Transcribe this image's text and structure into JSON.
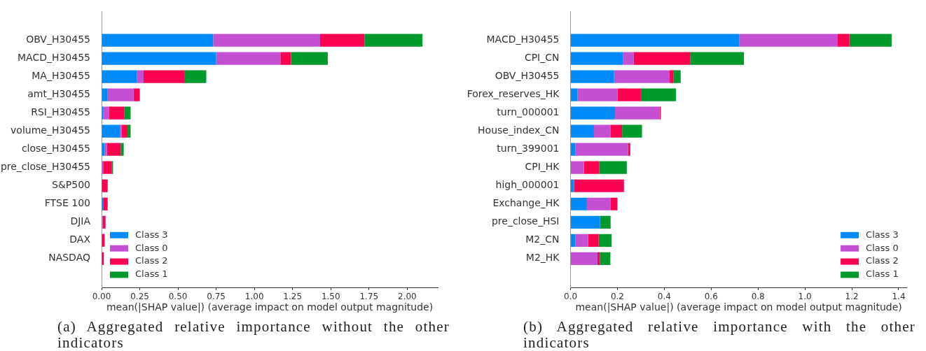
{
  "chart_data": [
    {
      "type": "bar",
      "orientation": "horizontal",
      "stacked": true,
      "grid": false,
      "legend": "bottom left",
      "categories": [
        "OBV_H30455",
        "MACD_H30455",
        "MA_H30455",
        "amt_H30455",
        "RSI_H30455",
        "volume_H30455",
        "close_H30455",
        "pre_close_H30455",
        "S&P500",
        "FTSE 100",
        "DJIA",
        "DAX",
        "NASDAQ"
      ],
      "series": [
        {
          "name": "Class 3",
          "color": "#008bfb",
          "values": [
            0.73,
            0.75,
            0.23,
            0.04,
            0.01,
            0.12,
            0.02,
            null,
            null,
            0.01,
            null,
            null,
            null
          ]
        },
        {
          "name": "Class 0",
          "color": "#c54fd3",
          "values": [
            0.7,
            0.42,
            0.045,
            0.17,
            0.04,
            0.01,
            0.015,
            0.01,
            null,
            null,
            0.008,
            null,
            null
          ]
        },
        {
          "name": "Class 2",
          "color": "#ff0051",
          "values": [
            0.29,
            0.07,
            0.27,
            0.04,
            0.1,
            0.04,
            0.09,
            0.055,
            0.04,
            0.03,
            0.018,
            0.02,
            0.015
          ]
        },
        {
          "name": "Class 1",
          "color": "#00992b",
          "values": [
            0.38,
            0.24,
            0.14,
            null,
            0.04,
            0.02,
            0.02,
            0.01,
            null,
            null,
            null,
            null,
            null
          ]
        }
      ],
      "xlim": [
        0,
        2.2
      ],
      "xticks": [
        {
          "value": 0,
          "label": "0.00"
        },
        {
          "value": 0.25,
          "label": "0.25"
        },
        {
          "value": 0.5,
          "label": "0.50"
        },
        {
          "value": 0.75,
          "label": "0.75"
        },
        {
          "value": 1,
          "label": "1.00"
        },
        {
          "value": 1.25,
          "label": "1.25"
        },
        {
          "value": 1.5,
          "label": "1.50"
        },
        {
          "value": 1.75,
          "label": "1.75"
        },
        {
          "value": 2,
          "label": "2.00"
        }
      ],
      "xlabel": "mean(|SHAP value|) (average impact on model output magnitude)",
      "annotations": [
        "(a) Aggregated relative importance without the other indicators"
      ]
    },
    {
      "type": "bar",
      "orientation": "horizontal",
      "stacked": true,
      "grid": false,
      "legend": "bottom right",
      "categories": [
        "MACD_H30455",
        "CPI_CN",
        "OBV_H30455",
        "Forex_reserves_HK",
        "turn_000001",
        "House_index_CN",
        "turn_399001",
        "CPI_HK",
        "high_000001",
        "Exchange_HK",
        "pre_close_HSI",
        "M2_CN",
        "M2_HK"
      ],
      "series": [
        {
          "name": "Class 3",
          "color": "#008bfb",
          "values": [
            0.72,
            0.225,
            0.186,
            0.03,
            0.19,
            0.1,
            0.02,
            null,
            0.015,
            0.07,
            0.126,
            0.02,
            null
          ]
        },
        {
          "name": "Class 0",
          "color": "#c54fd3",
          "values": [
            0.42,
            0.045,
            0.237,
            0.17,
            0.19,
            0.07,
            0.225,
            0.057,
            null,
            0.1,
            null,
            0.055,
            0.115
          ]
        },
        {
          "name": "Class 2",
          "color": "#ff0051",
          "values": [
            0.05,
            0.24,
            0.017,
            0.1,
            0.005,
            0.05,
            0.01,
            0.065,
            0.213,
            0.03,
            null,
            0.045,
            0.01
          ]
        },
        {
          "name": "Class 1",
          "color": "#00992b",
          "values": [
            0.18,
            0.23,
            0.03,
            0.15,
            null,
            0.085,
            null,
            0.118,
            null,
            null,
            0.045,
            0.055,
            0.045
          ]
        }
      ],
      "xlim": [
        0,
        1.435
      ],
      "xticks": [
        {
          "value": 0,
          "label": "0.0"
        },
        {
          "value": 0.2,
          "label": "0.2"
        },
        {
          "value": 0.4,
          "label": "0.4"
        },
        {
          "value": 0.6,
          "label": "0.6"
        },
        {
          "value": 0.8,
          "label": "0.8"
        },
        {
          "value": 1,
          "label": "1.0"
        },
        {
          "value": 1.2,
          "label": "1.2"
        },
        {
          "value": 1.4,
          "label": "1.4"
        }
      ],
      "xlabel": "mean(|SHAP value|) (average impact on model output magnitude)",
      "annotations": [
        "(b) Aggregated relative importance with the other indicators"
      ]
    }
  ]
}
